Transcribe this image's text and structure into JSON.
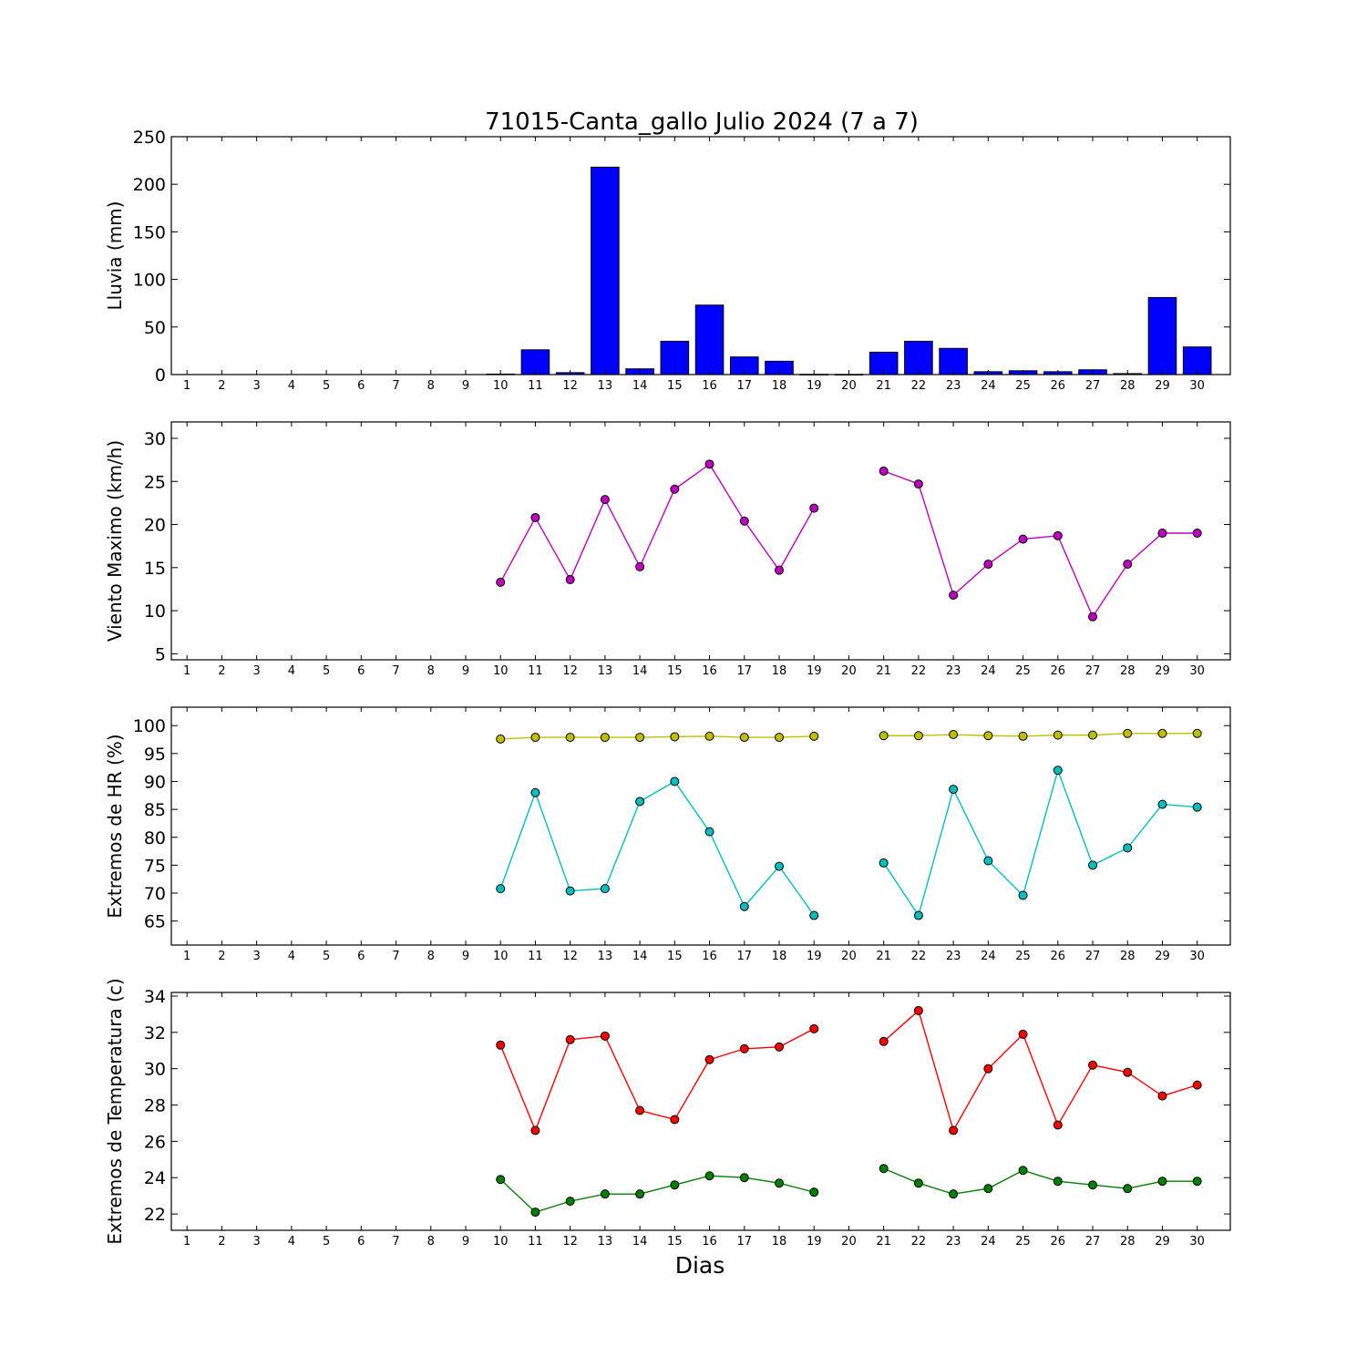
{
  "chart_data": {
    "title": "71015-Canta_gallo Julio 2024  (7 a 7)",
    "xlabel": "Dias",
    "days": [
      1,
      2,
      3,
      4,
      5,
      6,
      7,
      8,
      9,
      10,
      11,
      12,
      13,
      14,
      15,
      16,
      17,
      18,
      19,
      20,
      21,
      22,
      23,
      24,
      25,
      26,
      27,
      28,
      29,
      30
    ],
    "panels": [
      {
        "type": "bar",
        "ylabel": "Lluvia (mm)",
        "ylim": [
          0,
          250
        ],
        "yticks": [
          0,
          50,
          100,
          150,
          200,
          250
        ],
        "series": [
          {
            "color": "#0000ff",
            "values": [
              null,
              null,
              null,
              null,
              null,
              null,
              null,
              null,
              null,
              0.5,
              26,
              2,
              218,
              6,
              35,
              73,
              18.5,
              14,
              0.2,
              0.1,
              23.5,
              35,
              27.5,
              3,
              4,
              3,
              5,
              1,
              81,
              29
            ]
          }
        ]
      },
      {
        "type": "line",
        "ylabel": "Viento Maximo (km/h)",
        "ylim": [
          4.3,
          31.9
        ],
        "yticks": [
          5,
          10,
          15,
          20,
          25,
          30
        ],
        "series": [
          {
            "color": "#bf00bf",
            "values": [
              null,
              null,
              null,
              null,
              null,
              null,
              null,
              null,
              null,
              13.3,
              20.8,
              13.6,
              22.9,
              15.1,
              24.1,
              27,
              20.4,
              14.7,
              21.9,
              null,
              26.2,
              24.7,
              11.8,
              15.4,
              18.3,
              18.7,
              9.3,
              15.4,
              19,
              19
            ]
          }
        ]
      },
      {
        "type": "line",
        "ylabel": "Extremos de HR (%)",
        "ylim": [
          60.7,
          103.3
        ],
        "yticks": [
          65,
          70,
          75,
          80,
          85,
          90,
          95,
          100
        ],
        "series": [
          {
            "color": "#bfbf00",
            "values": [
              null,
              null,
              null,
              null,
              null,
              null,
              null,
              null,
              null,
              97.6,
              97.9,
              97.9,
              97.9,
              97.9,
              98,
              98.1,
              97.9,
              97.9,
              98.1,
              null,
              98.2,
              98.2,
              98.4,
              98.2,
              98.1,
              98.3,
              98.3,
              98.6,
              98.6,
              98.6
            ]
          },
          {
            "color": "#00bfbf",
            "values": [
              null,
              null,
              null,
              null,
              null,
              null,
              null,
              null,
              null,
              70.8,
              88,
              70.4,
              70.8,
              86.4,
              90,
              81,
              67.6,
              74.8,
              66,
              null,
              75.4,
              66,
              88.6,
              75.8,
              69.6,
              92,
              75,
              78.1,
              85.9,
              85.4
            ]
          }
        ]
      },
      {
        "type": "line",
        "ylabel": "Extremos de Temperatura (c)",
        "ylim": [
          21.1,
          34.2
        ],
        "yticks": [
          22,
          24,
          26,
          28,
          30,
          32,
          34
        ],
        "series": [
          {
            "color": "#ff0000",
            "values": [
              null,
              null,
              null,
              null,
              null,
              null,
              null,
              null,
              null,
              31.3,
              26.6,
              31.6,
              31.8,
              27.7,
              27.2,
              30.5,
              31.1,
              31.2,
              32.2,
              null,
              31.5,
              33.2,
              26.6,
              30,
              31.9,
              26.9,
              30.2,
              29.8,
              28.5,
              29.1
            ]
          },
          {
            "color": "#008000",
            "values": [
              null,
              null,
              null,
              null,
              null,
              null,
              null,
              null,
              null,
              23.9,
              22.1,
              22.7,
              23.1,
              23.1,
              23.6,
              24.1,
              24,
              23.7,
              23.2,
              null,
              24.5,
              23.7,
              23.1,
              23.4,
              24.4,
              23.8,
              23.6,
              23.4,
              23.8,
              23.8
            ]
          }
        ]
      }
    ]
  }
}
